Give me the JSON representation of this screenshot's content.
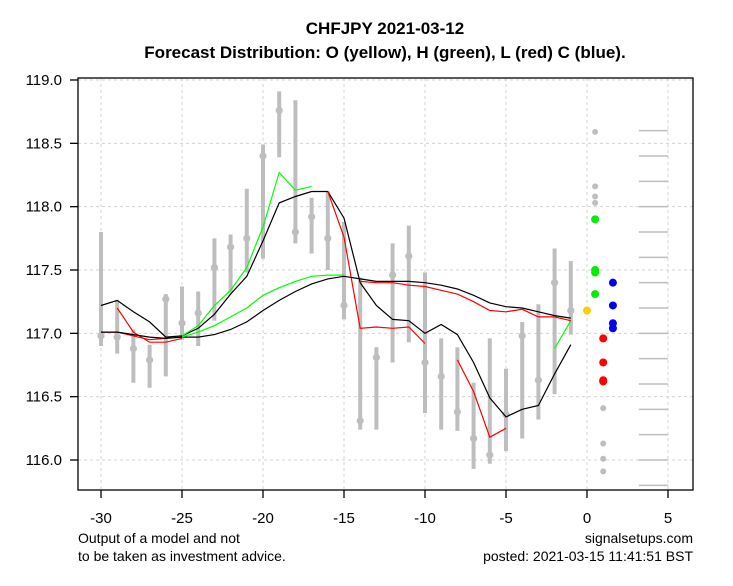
{
  "chart_data": {
    "type": "line",
    "title": "CHFJPY 2021-03-12",
    "subtitle": "Forecast Distribution: O (yellow), H (green), L (red) C (blue).",
    "xlabel": "",
    "ylabel": "",
    "xlim": [
      -31.5,
      6.5
    ],
    "ylim": [
      115.75,
      119.05
    ],
    "grid": true,
    "x_ticks": [
      -30,
      -25,
      -20,
      -15,
      -10,
      -5,
      0,
      5
    ],
    "x_tick_labels": [
      "-30",
      "-25",
      "-20",
      "-15",
      "-10",
      "-5",
      "0",
      "5"
    ],
    "y_ticks": [
      116.0,
      116.5,
      117.0,
      117.5,
      118.0,
      118.5,
      119.0
    ],
    "y_tick_labels": [
      "116.0",
      "116.5",
      "117.0",
      "117.5",
      "118.0",
      "118.5",
      "119.0"
    ],
    "colors": {
      "bar": "#bebebe",
      "grid": "#d3d3d3",
      "black_line": "#000000",
      "green_line": "#00ff00",
      "red_line": "#ff0000",
      "open": "#ffcc00",
      "high": "#00ee00",
      "low": "#ff0000",
      "close": "#0000ee",
      "dist": "#bebebe"
    },
    "history": {
      "x": [
        -30,
        -29,
        -28,
        -27,
        -26,
        -25,
        -24,
        -23,
        -22,
        -21,
        -20,
        -19,
        -18,
        -17,
        -16,
        -15,
        -14,
        -13,
        -12,
        -11,
        -10,
        -9,
        -8,
        -7,
        -6,
        -5,
        -4,
        -3,
        -2,
        -1
      ],
      "high": [
        117.8,
        117.26,
        117.03,
        116.91,
        117.31,
        117.37,
        117.33,
        117.75,
        117.78,
        118.14,
        118.49,
        118.91,
        118.84,
        118.07,
        118.12,
        117.88,
        117.44,
        116.89,
        117.71,
        117.85,
        117.48,
        116.96,
        116.89,
        116.61,
        116.96,
        116.72,
        117.09,
        117.23,
        117.67,
        117.57
      ],
      "low": [
        116.9,
        116.84,
        116.61,
        116.57,
        116.66,
        116.95,
        116.9,
        117.1,
        117.32,
        117.48,
        117.59,
        118.39,
        117.71,
        117.63,
        117.5,
        117.11,
        116.24,
        116.24,
        116.77,
        116.93,
        116.37,
        116.24,
        116.23,
        115.93,
        115.97,
        116.07,
        116.17,
        116.32,
        116.52,
        116.99
      ],
      "close": [
        116.98,
        116.97,
        116.88,
        116.79,
        117.27,
        117.08,
        117.16,
        117.52,
        117.68,
        117.75,
        118.4,
        118.76,
        117.8,
        117.92,
        117.75,
        117.22,
        116.31,
        116.81,
        117.46,
        117.61,
        116.77,
        116.66,
        116.38,
        116.17,
        116.04,
        116.36,
        116.98,
        116.63,
        117.4,
        117.18
      ]
    },
    "series": [
      {
        "name": "fast-black",
        "color": "#000000",
        "x": [
          -30,
          -29,
          -28,
          -27,
          -26,
          -25,
          -24,
          -23,
          -22,
          -21,
          -20,
          -19,
          -18,
          -17,
          -16,
          -15,
          -14,
          -13,
          -12,
          -11,
          -10,
          -9,
          -8,
          -7,
          -6,
          -5,
          -4,
          -3,
          -2,
          -1
        ],
        "y": [
          117.22,
          117.26,
          117.17,
          117.09,
          116.97,
          116.98,
          117.04,
          117.15,
          117.31,
          117.45,
          117.73,
          118.03,
          118.08,
          118.12,
          118.12,
          117.91,
          117.4,
          117.22,
          117.11,
          117.1,
          117.0,
          117.07,
          116.99,
          116.77,
          116.49,
          116.34,
          116.4,
          116.43,
          116.68,
          116.91
        ]
      },
      {
        "name": "fast-green-1",
        "color": "#00ff00",
        "x": [
          -25,
          -24,
          -23,
          -22,
          -21,
          -20,
          -19,
          -18,
          -17
        ],
        "y": [
          116.98,
          117.06,
          117.22,
          117.34,
          117.52,
          117.84,
          118.27,
          118.13,
          118.16
        ]
      },
      {
        "name": "fast-green-2",
        "color": "#00ff00",
        "x": [
          -2,
          -1
        ],
        "y": [
          116.88,
          117.1
        ]
      },
      {
        "name": "fast-red-1",
        "color": "#ff0000",
        "x": [
          -30,
          -29,
          -28,
          -27,
          -26
        ],
        "y": [
          117.01,
          117.01,
          116.98,
          116.95,
          116.96
        ]
      },
      {
        "name": "fast-red-2",
        "color": "#ff0000",
        "x": [
          -29,
          -28,
          -27,
          -26,
          -25
        ],
        "y": [
          117.2,
          117.01,
          116.93,
          116.93,
          116.96
        ]
      },
      {
        "name": "fast-red-3",
        "color": "#ff0000",
        "x": [
          -16,
          -15,
          -14,
          -13,
          -12,
          -11,
          -10
        ],
        "y": [
          118.12,
          117.76,
          117.04,
          117.05,
          117.04,
          117.05,
          116.92
        ]
      },
      {
        "name": "fast-red-4",
        "color": "#ff0000",
        "x": [
          -8,
          -7,
          -6,
          -5
        ],
        "y": [
          116.79,
          116.54,
          116.18,
          116.25
        ]
      },
      {
        "name": "slow-black",
        "color": "#000000",
        "x": [
          -30,
          -29,
          -28,
          -27,
          -26,
          -25,
          -24,
          -23,
          -22,
          -21,
          -20,
          -19,
          -18,
          -17,
          -16,
          -15,
          -14,
          -13,
          -12,
          -11,
          -10,
          -9,
          -8,
          -7,
          -6,
          -5,
          -4,
          -3,
          -2,
          -1
        ],
        "y": [
          117.01,
          117.01,
          116.99,
          116.97,
          116.96,
          116.97,
          116.97,
          116.99,
          117.03,
          117.09,
          117.18,
          117.26,
          117.33,
          117.39,
          117.43,
          117.45,
          117.43,
          117.41,
          117.41,
          117.41,
          117.4,
          117.38,
          117.35,
          117.3,
          117.24,
          117.21,
          117.2,
          117.17,
          117.14,
          117.12
        ]
      },
      {
        "name": "slow-green",
        "color": "#00ff00",
        "x": [
          -25,
          -24,
          -23,
          -22,
          -21,
          -20,
          -19,
          -18,
          -17,
          -16,
          -15
        ],
        "y": [
          116.97,
          117.01,
          117.06,
          117.13,
          117.2,
          117.3,
          117.36,
          117.41,
          117.45,
          117.46,
          117.46
        ]
      },
      {
        "name": "slow-red",
        "color": "#ff0000",
        "x": [
          -14,
          -13,
          -12,
          -11,
          -10,
          -9,
          -8,
          -7,
          -6,
          -5,
          -4,
          -3,
          -2,
          -1
        ],
        "y": [
          117.41,
          117.4,
          117.4,
          117.38,
          117.37,
          117.34,
          117.31,
          117.25,
          117.18,
          117.17,
          117.19,
          117.13,
          117.13,
          117.1
        ]
      }
    ],
    "forecast": {
      "open": [
        {
          "x": 0,
          "y": 117.18
        }
      ],
      "high": [
        {
          "x": 0.5,
          "y": 117.9
        },
        {
          "x": 0.5,
          "y": 117.5
        },
        {
          "x": 0.5,
          "y": 117.48
        },
        {
          "x": 0.5,
          "y": 117.31
        }
      ],
      "low": [
        {
          "x": 1.0,
          "y": 116.96
        },
        {
          "x": 1.0,
          "y": 116.77
        },
        {
          "x": 1.0,
          "y": 116.63
        },
        {
          "x": 1.0,
          "y": 116.62
        }
      ],
      "close": [
        {
          "x": 1.6,
          "y": 117.4
        },
        {
          "x": 1.6,
          "y": 117.22
        },
        {
          "x": 1.6,
          "y": 117.08
        },
        {
          "x": 1.6,
          "y": 117.04
        }
      ],
      "high_extremes": [
        {
          "x": 0.5,
          "y": 118.59
        },
        {
          "x": 0.5,
          "y": 118.16
        },
        {
          "x": 0.5,
          "y": 118.08
        },
        {
          "x": 0.5,
          "y": 118.03
        }
      ],
      "low_extremes": [
        {
          "x": 1.0,
          "y": 116.41
        },
        {
          "x": 1.0,
          "y": 116.13
        },
        {
          "x": 1.0,
          "y": 116.01
        },
        {
          "x": 1.0,
          "y": 115.91
        }
      ]
    },
    "levels": {
      "x_range": [
        3.2,
        5.0
      ],
      "y": [
        118.6,
        118.4,
        118.2,
        118.0,
        117.8,
        117.6,
        117.4,
        117.2,
        117.0,
        116.8,
        116.6,
        116.4,
        116.2,
        116.0,
        115.8
      ]
    }
  },
  "footer": {
    "disclaimer_line1": "Output of a model and not",
    "disclaimer_line2": "to be taken as investment advice.",
    "site": "signalsetups.com",
    "posted": "posted: 2021-03-15 11:41:51 BST"
  }
}
